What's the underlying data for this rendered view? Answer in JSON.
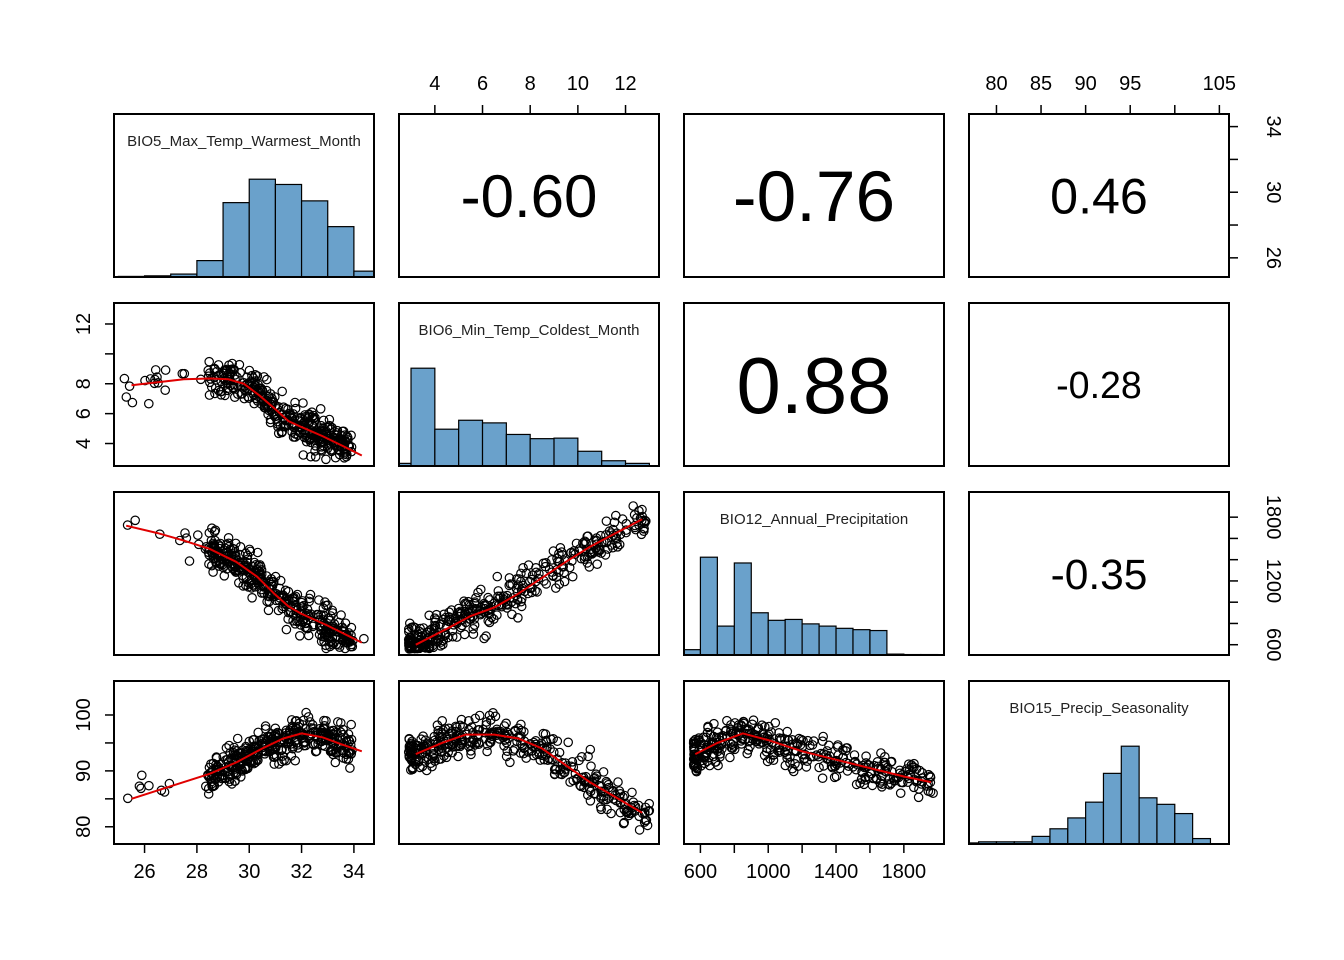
{
  "chart_data": {
    "type": "scatter",
    "title": "",
    "variables": [
      {
        "name": "BIO5_Max_Temp_Warmest_Month",
        "range": [
          25.2,
          34.4
        ]
      },
      {
        "name": "BIO6_Min_Temp_Coldest_Month",
        "range": [
          2.9,
          13.0
        ]
      },
      {
        "name": "BIO12_Annual_Precipitation",
        "range": [
          560,
          1980
        ]
      },
      {
        "name": "BIO15_Precip_Seasonality",
        "range": [
          78,
          105
        ]
      }
    ],
    "histograms": [
      {
        "variable": "BIO5_Max_Temp_Warmest_Month",
        "breaks": [
          25,
          26,
          27,
          28,
          29,
          30,
          31,
          32,
          33,
          34,
          35
        ],
        "counts": [
          1,
          2,
          5,
          28,
          127,
          167,
          158,
          130,
          86,
          10
        ]
      },
      {
        "variable": "BIO6_Min_Temp_Coldest_Month",
        "breaks": [
          2,
          3,
          4,
          5,
          6,
          7,
          8,
          9,
          10,
          11,
          12,
          13
        ],
        "counts": [
          5,
          186,
          70,
          87,
          82,
          60,
          52,
          53,
          28,
          10,
          5
        ]
      },
      {
        "variable": "BIO12_Annual_Precipitation",
        "breaks": [
          500,
          600,
          700,
          800,
          900,
          1000,
          1100,
          1200,
          1300,
          1400,
          1500,
          1600,
          1700,
          1800,
          1900,
          2000
        ],
        "counts": [
          12,
          220,
          65,
          207,
          95,
          78,
          80,
          70,
          65,
          60,
          57,
          55,
          2,
          1,
          1
        ]
      },
      {
        "variable": "BIO15_Precip_Seasonality",
        "breaks": [
          76,
          78,
          80,
          82,
          84,
          86,
          88,
          90,
          92,
          94,
          96,
          98,
          100,
          102,
          104
        ],
        "counts": [
          2,
          4,
          4,
          4,
          14,
          28,
          48,
          77,
          130,
          180,
          85,
          73,
          56,
          10
        ]
      }
    ],
    "correlations": [
      {
        "pair": [
          "BIO5_Max_Temp_Warmest_Month",
          "BIO6_Min_Temp_Coldest_Month"
        ],
        "label": "-0.60"
      },
      {
        "pair": [
          "BIO5_Max_Temp_Warmest_Month",
          "BIO12_Annual_Precipitation"
        ],
        "label": "-0.76"
      },
      {
        "pair": [
          "BIO5_Max_Temp_Warmest_Month",
          "BIO15_Precip_Seasonality"
        ],
        "label": "0.46"
      },
      {
        "pair": [
          "BIO6_Min_Temp_Coldest_Month",
          "BIO12_Annual_Precipitation"
        ],
        "label": "0.88"
      },
      {
        "pair": [
          "BIO6_Min_Temp_Coldest_Month",
          "BIO15_Precip_Seasonality"
        ],
        "label": "-0.28"
      },
      {
        "pair": [
          "BIO12_Annual_Precipitation",
          "BIO15_Precip_Seasonality"
        ],
        "label": "-0.35"
      }
    ],
    "smoothers": [
      {
        "x": "BIO5_Max_Temp_Warmest_Month",
        "y": "BIO6_Min_Temp_Coldest_Month",
        "points": [
          [
            25.5,
            7.9
          ],
          [
            26.5,
            8.1
          ],
          [
            27.5,
            8.3
          ],
          [
            28.5,
            8.35
          ],
          [
            29.2,
            8.3
          ],
          [
            29.8,
            8.0
          ],
          [
            30.4,
            7.2
          ],
          [
            31.0,
            6.3
          ],
          [
            31.5,
            5.5
          ],
          [
            32.0,
            5.1
          ],
          [
            32.8,
            4.5
          ],
          [
            33.5,
            3.9
          ],
          [
            34.3,
            3.2
          ]
        ]
      },
      {
        "x": "BIO5_Max_Temp_Warmest_Month",
        "y": "BIO12_Annual_Precipitation",
        "points": [
          [
            25.3,
            1720
          ],
          [
            26.5,
            1650
          ],
          [
            27.5,
            1580
          ],
          [
            28.5,
            1500
          ],
          [
            29.5,
            1380
          ],
          [
            30.3,
            1240
          ],
          [
            31.0,
            1070
          ],
          [
            31.5,
            960
          ],
          [
            32.0,
            890
          ],
          [
            33.0,
            780
          ],
          [
            34.3,
            620
          ]
        ]
      },
      {
        "x": "BIO5_Max_Temp_Warmest_Month",
        "y": "BIO15_Precip_Seasonality",
        "points": [
          [
            25.5,
            85.0
          ],
          [
            26.5,
            86.5
          ],
          [
            27.5,
            88.0
          ],
          [
            28.5,
            89.5
          ],
          [
            29.5,
            91.5
          ],
          [
            30.5,
            94.0
          ],
          [
            31.3,
            95.8
          ],
          [
            32.0,
            96.7
          ],
          [
            32.8,
            96.0
          ],
          [
            33.5,
            94.8
          ],
          [
            34.3,
            93.5
          ]
        ]
      },
      {
        "x": "BIO6_Min_Temp_Coldest_Month",
        "y": "BIO12_Annual_Precipitation",
        "points": [
          [
            3.2,
            600
          ],
          [
            4.5,
            750
          ],
          [
            5.5,
            870
          ],
          [
            6.5,
            950
          ],
          [
            7.5,
            1080
          ],
          [
            8.5,
            1230
          ],
          [
            9.5,
            1380
          ],
          [
            10.5,
            1520
          ],
          [
            11.5,
            1640
          ],
          [
            12.7,
            1780
          ]
        ]
      },
      {
        "x": "BIO6_Min_Temp_Coldest_Month",
        "y": "BIO15_Precip_Seasonality",
        "points": [
          [
            3.2,
            93.0
          ],
          [
            4.3,
            95.0
          ],
          [
            5.3,
            96.5
          ],
          [
            6.5,
            96.5
          ],
          [
            7.5,
            95.8
          ],
          [
            8.5,
            94.0
          ],
          [
            9.5,
            91.0
          ],
          [
            10.5,
            88.0
          ],
          [
            11.5,
            85.5
          ],
          [
            12.7,
            82.5
          ]
        ]
      },
      {
        "x": "BIO12_Annual_Precipitation",
        "y": "BIO15_Precip_Seasonality",
        "points": [
          [
            570,
            93.0
          ],
          [
            700,
            95.0
          ],
          [
            850,
            96.7
          ],
          [
            1000,
            95.5
          ],
          [
            1200,
            93.5
          ],
          [
            1400,
            92.0
          ],
          [
            1600,
            90.5
          ],
          [
            1800,
            89.0
          ],
          [
            1960,
            88.0
          ]
        ]
      }
    ],
    "histogram_color": "#6aa1cb",
    "smoother_color": "#e00000",
    "grid": false,
    "legend": "none"
  },
  "axes": {
    "top": [
      {
        "panel": 1,
        "ticks": [
          4,
          6,
          8,
          10,
          12
        ]
      },
      {
        "panel": 3,
        "ticks": [
          80,
          85,
          90,
          95,
          105
        ]
      }
    ],
    "bottom": [
      {
        "panel": 0,
        "ticks": [
          26,
          28,
          30,
          32,
          34
        ]
      },
      {
        "panel": 2,
        "ticks": [
          600,
          1000,
          1400,
          1800
        ]
      }
    ],
    "left": [
      {
        "panel": 1,
        "ticks": [
          4,
          6,
          8,
          12
        ]
      },
      {
        "panel": 3,
        "ticks": [
          80,
          90,
          100
        ]
      }
    ],
    "right": [
      {
        "panel": 0,
        "ticks": [
          26,
          30,
          34
        ]
      },
      {
        "panel": 2,
        "ticks": [
          600,
          1200,
          1800
        ]
      }
    ]
  },
  "tick_marks": {
    "top": [
      {
        "panel": 1,
        "ticks": [
          4,
          6,
          8,
          10,
          12
        ]
      },
      {
        "panel": 3,
        "ticks": [
          80,
          85,
          90,
          95,
          100,
          105
        ]
      }
    ],
    "bottom": [
      {
        "panel": 0,
        "ticks": [
          26,
          28,
          30,
          32,
          34
        ]
      },
      {
        "panel": 2,
        "ticks": [
          600,
          800,
          1000,
          1200,
          1400,
          1600,
          1800
        ]
      }
    ],
    "left": [
      {
        "panel": 1,
        "ticks": [
          4,
          6,
          8,
          10,
          12
        ]
      },
      {
        "panel": 3,
        "ticks": [
          80,
          85,
          90,
          95,
          100
        ]
      }
    ],
    "right": [
      {
        "panel": 0,
        "ticks": [
          26,
          28,
          30,
          32,
          34
        ]
      },
      {
        "panel": 2,
        "ticks": [
          600,
          800,
          1000,
          1200,
          1400,
          1600,
          1800
        ]
      }
    ]
  }
}
